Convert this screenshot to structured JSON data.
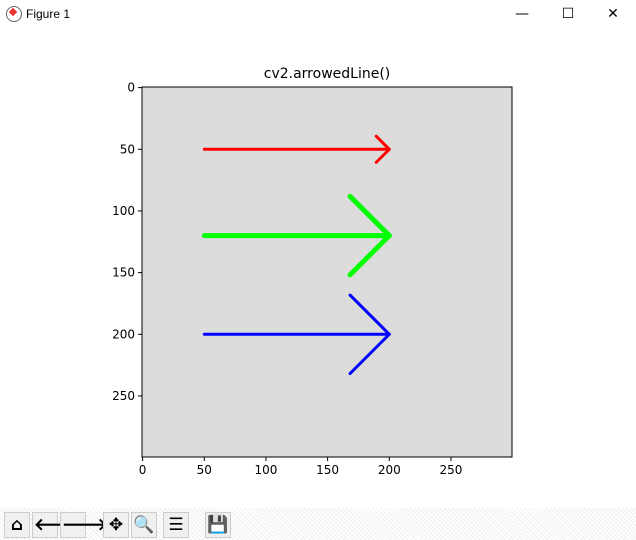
{
  "window": {
    "title": "Figure 1",
    "minimize": "—",
    "maximize": "☐",
    "close": "✕"
  },
  "toolbar": [
    {
      "name": "home-icon",
      "glyph": "⌂"
    },
    {
      "name": "back-icon",
      "glyph": "🡐"
    },
    {
      "name": "forward-icon",
      "glyph": "🡒"
    },
    {
      "name": "pan-icon",
      "glyph": "✥"
    },
    {
      "name": "zoom-icon",
      "glyph": "🔍"
    },
    {
      "name": "configure-subplots-icon",
      "glyph": "☰"
    },
    {
      "name": "save-icon",
      "glyph": "💾"
    }
  ],
  "chart_data": {
    "type": "image",
    "title": "cv2.arrowedLine()",
    "xlim": [
      -0.5,
      299.5
    ],
    "ylim": [
      299.5,
      -0.5
    ],
    "xticks": [
      0,
      50,
      100,
      150,
      200,
      250
    ],
    "yticks": [
      0,
      50,
      100,
      150,
      200,
      250
    ],
    "background": "#dcdcdc",
    "arrows": [
      {
        "start": [
          50,
          50
        ],
        "end": [
          200,
          50
        ],
        "color": "#ff0000",
        "thickness": 3,
        "tip_length": 0.1
      },
      {
        "start": [
          50,
          120
        ],
        "end": [
          200,
          120
        ],
        "color": "#00ff00",
        "thickness": 5,
        "tip_length": 0.3
      },
      {
        "start": [
          50,
          200
        ],
        "end": [
          200,
          200
        ],
        "color": "#0000ff",
        "thickness": 3,
        "tip_length": 0.3
      }
    ]
  }
}
